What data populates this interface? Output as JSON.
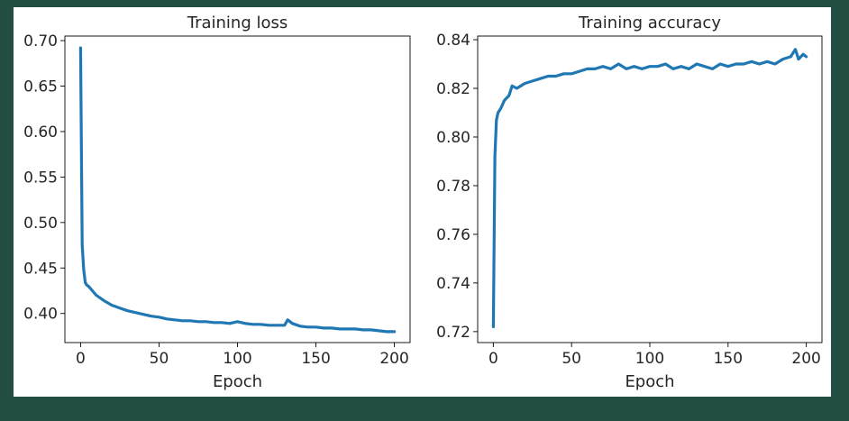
{
  "chart_data": [
    {
      "type": "line",
      "title": "Training loss",
      "xlabel": "Epoch",
      "ylabel": "",
      "xlim": [
        -10,
        210
      ],
      "ylim": [
        0.368,
        0.705
      ],
      "xticks": [
        0,
        50,
        100,
        150,
        200
      ],
      "yticks": [
        0.4,
        0.45,
        0.5,
        0.55,
        0.6,
        0.65,
        0.7
      ],
      "xtick_labels": [
        "0",
        "50",
        "100",
        "150",
        "200"
      ],
      "ytick_labels": [
        "0.40",
        "0.45",
        "0.50",
        "0.55",
        "0.60",
        "0.65",
        "0.70"
      ],
      "grid": false,
      "series": [
        {
          "color": "#1f77b4",
          "x": [
            0,
            1,
            2,
            3,
            4,
            5,
            7,
            10,
            15,
            20,
            25,
            30,
            35,
            40,
            45,
            50,
            55,
            60,
            65,
            70,
            75,
            80,
            85,
            90,
            95,
            100,
            105,
            110,
            115,
            120,
            125,
            130,
            132,
            135,
            140,
            145,
            150,
            155,
            160,
            165,
            170,
            175,
            180,
            185,
            190,
            195,
            200
          ],
          "y": [
            0.692,
            0.475,
            0.448,
            0.434,
            0.431,
            0.43,
            0.426,
            0.42,
            0.414,
            0.409,
            0.406,
            0.403,
            0.401,
            0.399,
            0.397,
            0.396,
            0.394,
            0.393,
            0.392,
            0.392,
            0.391,
            0.391,
            0.39,
            0.39,
            0.389,
            0.391,
            0.389,
            0.388,
            0.388,
            0.387,
            0.387,
            0.387,
            0.393,
            0.389,
            0.386,
            0.385,
            0.385,
            0.384,
            0.384,
            0.383,
            0.383,
            0.383,
            0.382,
            0.382,
            0.381,
            0.38,
            0.38
          ]
        }
      ]
    },
    {
      "type": "line",
      "title": "Training accuracy",
      "xlabel": "Epoch",
      "ylabel": "",
      "xlim": [
        -10,
        210
      ],
      "ylim": [
        0.7155,
        0.8415
      ],
      "xticks": [
        0,
        50,
        100,
        150,
        200
      ],
      "yticks": [
        0.72,
        0.74,
        0.76,
        0.78,
        0.8,
        0.82,
        0.84
      ],
      "xtick_labels": [
        "0",
        "50",
        "100",
        "150",
        "200"
      ],
      "ytick_labels": [
        "0.72",
        "0.74",
        "0.76",
        "0.78",
        "0.80",
        "0.82",
        "0.84"
      ],
      "grid": false,
      "series": [
        {
          "color": "#1f77b4",
          "x": [
            0,
            1,
            2,
            3,
            4,
            5,
            7,
            10,
            12,
            15,
            20,
            25,
            30,
            35,
            40,
            45,
            50,
            55,
            60,
            65,
            70,
            75,
            80,
            85,
            90,
            95,
            100,
            105,
            110,
            115,
            120,
            125,
            130,
            135,
            140,
            145,
            150,
            155,
            160,
            165,
            170,
            175,
            180,
            185,
            190,
            193,
            195,
            198,
            200
          ],
          "y": [
            0.722,
            0.792,
            0.807,
            0.81,
            0.811,
            0.812,
            0.815,
            0.817,
            0.821,
            0.82,
            0.822,
            0.823,
            0.824,
            0.825,
            0.825,
            0.826,
            0.826,
            0.827,
            0.828,
            0.828,
            0.829,
            0.828,
            0.83,
            0.828,
            0.829,
            0.828,
            0.829,
            0.829,
            0.83,
            0.828,
            0.829,
            0.828,
            0.83,
            0.829,
            0.828,
            0.83,
            0.829,
            0.83,
            0.83,
            0.831,
            0.83,
            0.831,
            0.83,
            0.832,
            0.833,
            0.836,
            0.832,
            0.834,
            0.833
          ]
        }
      ]
    }
  ]
}
